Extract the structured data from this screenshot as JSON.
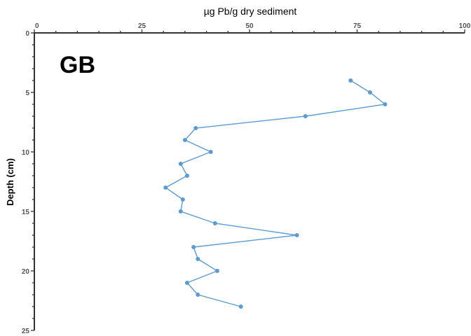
{
  "chart_data": {
    "type": "line",
    "panel_label": "GB",
    "xlabel": "µg Pb/g dry sediment",
    "ylabel": "Depth (cm)",
    "x_axis_position": "top",
    "y_axis_inverted": true,
    "xlim": [
      0,
      100
    ],
    "ylim": [
      0,
      25
    ],
    "x_ticks": [
      0,
      25,
      50,
      75,
      100
    ],
    "x_tick_labels": [
      "0",
      "25",
      "50",
      "75",
      "100"
    ],
    "y_ticks": [
      0,
      5,
      10,
      15,
      20,
      25
    ],
    "y_tick_labels": [
      "0",
      "5",
      "10",
      "15",
      "20",
      "25"
    ],
    "grid": false,
    "series": [
      {
        "color": "#5b9bd5",
        "points": [
          {
            "x": 73.5,
            "y": 4
          },
          {
            "x": 78,
            "y": 5
          },
          {
            "x": 81.5,
            "y": 6
          },
          {
            "x": 63,
            "y": 7
          },
          {
            "x": 37.5,
            "y": 8
          },
          {
            "x": 35,
            "y": 9
          },
          {
            "x": 41,
            "y": 10
          },
          {
            "x": 34,
            "y": 11
          },
          {
            "x": 35.5,
            "y": 12
          },
          {
            "x": 30.5,
            "y": 13
          },
          {
            "x": 34.5,
            "y": 14
          },
          {
            "x": 34,
            "y": 15
          },
          {
            "x": 42,
            "y": 16
          },
          {
            "x": 61,
            "y": 17
          },
          {
            "x": 37,
            "y": 18
          },
          {
            "x": 38,
            "y": 19
          },
          {
            "x": 42.5,
            "y": 20
          },
          {
            "x": 35.5,
            "y": 21
          },
          {
            "x": 38,
            "y": 22
          },
          {
            "x": 48,
            "y": 23
          }
        ]
      }
    ]
  }
}
